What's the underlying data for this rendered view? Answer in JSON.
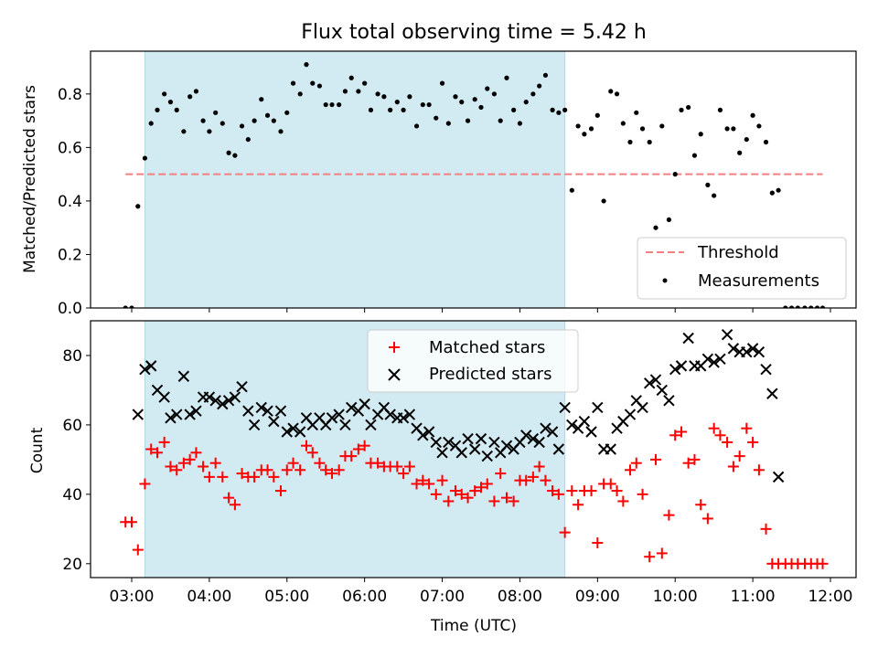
{
  "title": "Flux total observing time = 5.42 h",
  "colors": {
    "shade": "#add8e6",
    "threshold": "#f08080",
    "matched": "#ff0000",
    "predicted": "#000000",
    "points": "#000000"
  },
  "chart_data": [
    {
      "type": "scatter",
      "title": "Flux total observing time = 5.42 h",
      "xlabel": "",
      "ylabel": "Matched/Predicted stars",
      "x_unit": "hours UTC",
      "xlim": [
        2.47,
        12.33
      ],
      "ylim": [
        0,
        0.96
      ],
      "y_ticks": [
        "0.0",
        "0.2",
        "0.4",
        "0.6",
        "0.8"
      ],
      "x_ticks": [
        "03:00",
        "04:00",
        "05:00",
        "06:00",
        "07:00",
        "08:00",
        "09:00",
        "10:00",
        "11:00",
        "12:00"
      ],
      "shaded_interval": [
        3.17,
        8.58
      ],
      "threshold": {
        "value": 0.5,
        "x_range": [
          2.92,
          11.9
        ]
      },
      "legend": [
        "Threshold",
        "Measurements"
      ],
      "legend_position": "lower right",
      "series": [
        {
          "name": "Measurements",
          "x": [
            2.92,
            3.0,
            3.08,
            3.17,
            3.25,
            3.33,
            3.42,
            3.5,
            3.58,
            3.67,
            3.75,
            3.83,
            3.92,
            4.0,
            4.08,
            4.17,
            4.25,
            4.33,
            4.42,
            4.5,
            4.58,
            4.67,
            4.75,
            4.83,
            4.92,
            5.0,
            5.08,
            5.17,
            5.25,
            5.33,
            5.42,
            5.5,
            5.58,
            5.67,
            5.75,
            5.83,
            5.92,
            6.0,
            6.08,
            6.17,
            6.25,
            6.33,
            6.42,
            6.5,
            6.58,
            6.67,
            6.75,
            6.83,
            6.92,
            7.0,
            7.08,
            7.17,
            7.25,
            7.33,
            7.42,
            7.5,
            7.58,
            7.67,
            7.75,
            7.83,
            7.92,
            8.0,
            8.08,
            8.17,
            8.25,
            8.33,
            8.42,
            8.5,
            8.58,
            8.67,
            8.75,
            8.83,
            8.92,
            9.0,
            9.08,
            9.17,
            9.25,
            9.33,
            9.42,
            9.5,
            9.58,
            9.67,
            9.75,
            9.83,
            9.92,
            10.0,
            10.08,
            10.17,
            10.25,
            10.33,
            10.42,
            10.5,
            10.58,
            10.67,
            10.75,
            10.83,
            10.92,
            11.0,
            11.08,
            11.17,
            11.25,
            11.33,
            11.42,
            11.5,
            11.58,
            11.67,
            11.75,
            11.83,
            11.9
          ],
          "y": [
            0.0,
            0.0,
            0.38,
            0.56,
            0.69,
            0.74,
            0.8,
            0.77,
            0.74,
            0.66,
            0.79,
            0.81,
            0.7,
            0.66,
            0.73,
            0.69,
            0.58,
            0.57,
            0.68,
            0.63,
            0.7,
            0.78,
            0.72,
            0.7,
            0.66,
            0.73,
            0.84,
            0.8,
            0.91,
            0.84,
            0.83,
            0.76,
            0.76,
            0.76,
            0.81,
            0.86,
            0.81,
            0.84,
            0.74,
            0.8,
            0.79,
            0.74,
            0.77,
            0.74,
            0.79,
            0.68,
            0.76,
            0.76,
            0.71,
            0.84,
            0.69,
            0.79,
            0.77,
            0.7,
            0.78,
            0.75,
            0.82,
            0.8,
            0.7,
            0.86,
            0.74,
            0.69,
            0.77,
            0.8,
            0.83,
            0.87,
            0.74,
            0.73,
            0.74,
            0.44,
            0.68,
            0.65,
            0.67,
            0.72,
            0.4,
            0.81,
            0.8,
            0.69,
            0.62,
            0.73,
            0.67,
            0.62,
            0.3,
            0.68,
            0.33,
            0.5,
            0.74,
            0.75,
            0.57,
            0.65,
            0.46,
            0.42,
            0.74,
            0.67,
            0.67,
            0.58,
            0.63,
            0.72,
            0.68,
            0.62,
            0.43,
            0.44,
            0.0,
            0.0,
            0.0,
            0.0,
            0.0,
            0.0,
            0.0
          ]
        }
      ]
    },
    {
      "type": "scatter",
      "title": "",
      "xlabel": "Time (UTC)",
      "ylabel": "Count",
      "x_unit": "hours UTC",
      "xlim": [
        2.47,
        12.33
      ],
      "ylim": [
        16,
        90
      ],
      "y_ticks": [
        "20",
        "40",
        "60",
        "80"
      ],
      "x_ticks": [
        "03:00",
        "04:00",
        "05:00",
        "06:00",
        "07:00",
        "08:00",
        "09:00",
        "10:00",
        "11:00",
        "12:00"
      ],
      "shaded_interval": [
        3.17,
        8.58
      ],
      "legend": [
        "Matched stars",
        "Predicted stars"
      ],
      "legend_position": "upper center",
      "series": [
        {
          "name": "Matched stars",
          "x": [
            2.92,
            3.0,
            3.08,
            3.17,
            3.25,
            3.33,
            3.42,
            3.5,
            3.58,
            3.67,
            3.75,
            3.83,
            3.92,
            4.0,
            4.08,
            4.17,
            4.25,
            4.33,
            4.42,
            4.5,
            4.58,
            4.67,
            4.75,
            4.83,
            4.92,
            5.0,
            5.08,
            5.17,
            5.25,
            5.33,
            5.42,
            5.5,
            5.58,
            5.67,
            5.75,
            5.83,
            5.92,
            6.0,
            6.08,
            6.17,
            6.25,
            6.33,
            6.42,
            6.5,
            6.58,
            6.67,
            6.75,
            6.83,
            6.92,
            7.0,
            7.08,
            7.17,
            7.25,
            7.33,
            7.42,
            7.5,
            7.58,
            7.67,
            7.75,
            7.83,
            7.92,
            8.0,
            8.08,
            8.17,
            8.25,
            8.33,
            8.42,
            8.5,
            8.58,
            8.67,
            8.75,
            8.83,
            8.92,
            9.0,
            9.08,
            9.17,
            9.25,
            9.33,
            9.42,
            9.5,
            9.58,
            9.67,
            9.75,
            9.83,
            9.92,
            10.0,
            10.08,
            10.17,
            10.25,
            10.33,
            10.42,
            10.5,
            10.58,
            10.67,
            10.75,
            10.83,
            10.92,
            11.0,
            11.08,
            11.17,
            11.25,
            11.33,
            11.42,
            11.5,
            11.58,
            11.67,
            11.75,
            11.83,
            11.9
          ],
          "y": [
            32,
            32,
            24,
            43,
            53,
            52,
            55,
            48,
            47,
            49,
            50,
            52,
            48,
            45,
            49,
            45,
            39,
            37,
            46,
            45,
            45,
            47,
            47,
            45,
            41,
            47,
            49,
            47,
            54,
            52,
            49,
            47,
            46,
            47,
            51,
            51,
            53,
            54,
            49,
            49,
            48,
            48,
            48,
            46,
            48,
            43,
            44,
            43,
            40,
            44,
            38,
            41,
            40,
            39,
            41,
            42,
            43,
            38,
            46,
            39,
            38,
            44,
            44,
            45,
            48,
            44,
            41,
            40,
            29,
            41,
            37,
            41,
            41,
            26,
            43,
            43,
            41,
            38,
            47,
            49,
            40,
            22,
            50,
            23,
            34,
            57,
            58,
            49,
            50,
            37,
            33,
            59,
            57,
            55,
            48,
            51,
            59,
            55,
            47,
            30,
            20,
            20,
            20,
            20,
            20,
            20,
            20,
            20,
            20
          ]
        },
        {
          "name": "Predicted stars",
          "x": [
            3.08,
            3.17,
            3.25,
            3.33,
            3.42,
            3.5,
            3.58,
            3.67,
            3.75,
            3.83,
            3.92,
            4.0,
            4.08,
            4.17,
            4.25,
            4.33,
            4.42,
            4.5,
            4.58,
            4.67,
            4.75,
            4.83,
            4.92,
            5.0,
            5.08,
            5.17,
            5.25,
            5.33,
            5.42,
            5.5,
            5.58,
            5.67,
            5.75,
            5.83,
            5.92,
            6.0,
            6.08,
            6.17,
            6.25,
            6.33,
            6.42,
            6.5,
            6.58,
            6.67,
            6.75,
            6.83,
            6.92,
            7.0,
            7.08,
            7.17,
            7.25,
            7.33,
            7.42,
            7.5,
            7.58,
            7.67,
            7.75,
            7.83,
            7.92,
            8.0,
            8.08,
            8.17,
            8.25,
            8.33,
            8.42,
            8.5,
            8.58,
            8.67,
            8.75,
            8.83,
            8.92,
            9.0,
            9.08,
            9.17,
            9.25,
            9.33,
            9.42,
            9.5,
            9.58,
            9.67,
            9.75,
            9.83,
            9.92,
            10.0,
            10.08,
            10.17,
            10.25,
            10.33,
            10.42,
            10.5,
            10.58,
            10.67,
            10.75,
            10.83,
            10.92,
            11.0,
            11.08,
            11.17,
            11.25,
            11.33
          ],
          "y": [
            63,
            76,
            77,
            70,
            68,
            62,
            63,
            74,
            63,
            64,
            68,
            68,
            67,
            66,
            67,
            68,
            71,
            64,
            60,
            65,
            64,
            61,
            64,
            58,
            59,
            58,
            62,
            60,
            62,
            60,
            62,
            63,
            60,
            65,
            64,
            66,
            60,
            63,
            65,
            63,
            62,
            62,
            63,
            59,
            57,
            58,
            55,
            52,
            55,
            54,
            52,
            56,
            53,
            56,
            51,
            55,
            52,
            54,
            53,
            55,
            57,
            56,
            55,
            59,
            58,
            53,
            65,
            60,
            59,
            61,
            58,
            65,
            53,
            53,
            59,
            61,
            63,
            67,
            65,
            72,
            73,
            70,
            67,
            76,
            77,
            85,
            77,
            77,
            79,
            78,
            79,
            86,
            82,
            81,
            81,
            82,
            81,
            76,
            69,
            45
          ]
        }
      ]
    }
  ]
}
